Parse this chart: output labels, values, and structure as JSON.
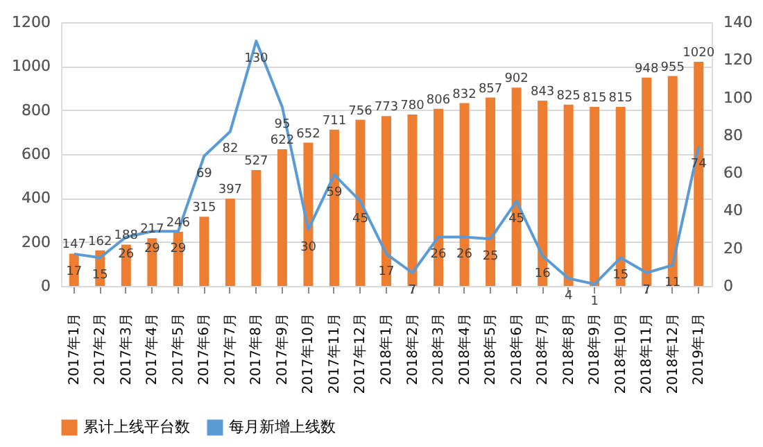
{
  "chart_data": {
    "type": "bar",
    "categories": [
      "2017年1月",
      "2017年2月",
      "2017年3月",
      "2017年4月",
      "2017年5月",
      "2017年6月",
      "2017年7月",
      "2017年8月",
      "2017年9月",
      "2017年10月",
      "2017年11月",
      "2017年12月",
      "2018年1月",
      "2018年2月",
      "2018年3月",
      "2018年4月",
      "2018年5月",
      "2018年6月",
      "2018年7月",
      "2018年8月",
      "2018年9月",
      "2018年10月",
      "2018年11月",
      "2018年12月",
      "2019年1月"
    ],
    "series": [
      {
        "name": "累计上线平台数",
        "color": "#ed7d31",
        "values": [
          147,
          162,
          188,
          217,
          246,
          315,
          397,
          527,
          622,
          652,
          711,
          756,
          773,
          780,
          806,
          832,
          857,
          902,
          843,
          825,
          815,
          815,
          948,
          955,
          1020
        ]
      },
      {
        "name": "每月新增上线数",
        "type": "line",
        "axis": "y2",
        "color": "#5b9bd5",
        "values": [
          17,
          15,
          26,
          29,
          29,
          69,
          82,
          130,
          95,
          30,
          59,
          45,
          17,
          7,
          26,
          26,
          25,
          45,
          16,
          4,
          1,
          15,
          7,
          11,
          74
        ]
      }
    ],
    "ylim": [
      0,
      1200
    ],
    "yticks": [
      0,
      200,
      400,
      600,
      800,
      1000,
      1200
    ],
    "y2lim": [
      0,
      140
    ],
    "y2ticks": [
      0,
      20,
      40,
      60,
      80,
      100,
      120,
      140
    ],
    "data_labels": true,
    "grid": "y",
    "legend": "bottom",
    "marker": "none",
    "line_style": "solid"
  }
}
